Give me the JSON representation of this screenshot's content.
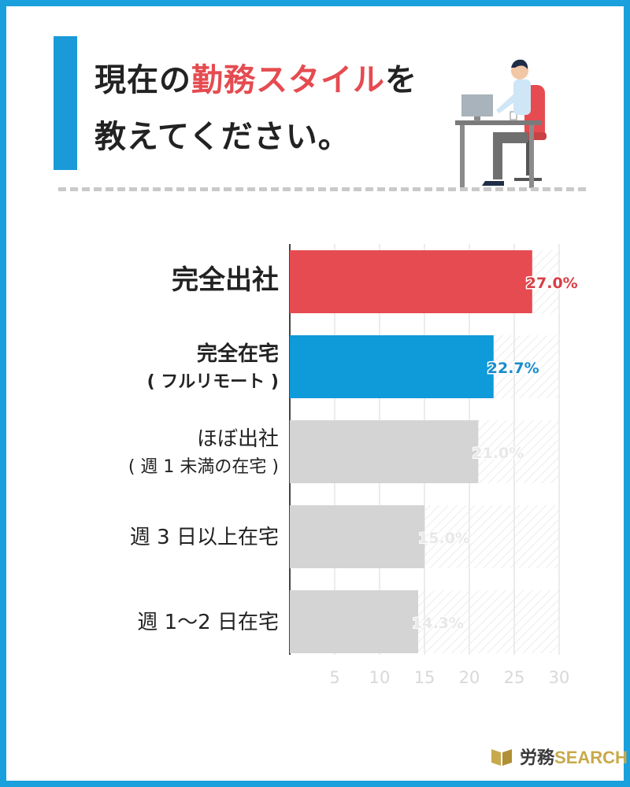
{
  "title": {
    "line1_pre": "現在の",
    "line1_highlight": "勤務スタイル",
    "line1_post": "を",
    "line2": "教えてください。"
  },
  "colors": {
    "red": "#e54b50",
    "blue": "#0f9ad9",
    "gray": "#d4d4d4",
    "frame": "#1aa0dc"
  },
  "chart_data": {
    "type": "bar",
    "orientation": "horizontal",
    "unit": "%",
    "xlim": [
      0,
      30
    ],
    "ticks": [
      5,
      10,
      15,
      20,
      25,
      30
    ],
    "grid": true,
    "categories": [
      [
        "完全出社"
      ],
      [
        "完全在宅",
        "( フルリモート )"
      ],
      [
        "ほぼ出社",
        "( 週 1 未満の在宅 )"
      ],
      [
        "週 3 日以上在宅"
      ],
      [
        "週 1〜2 日在宅"
      ]
    ],
    "values": [
      27.0,
      22.7,
      21.0,
      15.0,
      14.3
    ],
    "value_labels": [
      "27.0%",
      "22.7%",
      "21.0%",
      "15.0%",
      "14.3%"
    ],
    "highlight": [
      "red",
      "blue",
      "gray",
      "gray",
      "gray"
    ]
  },
  "logo": {
    "text_main": "労務",
    "text_accent": "SEARCH"
  }
}
